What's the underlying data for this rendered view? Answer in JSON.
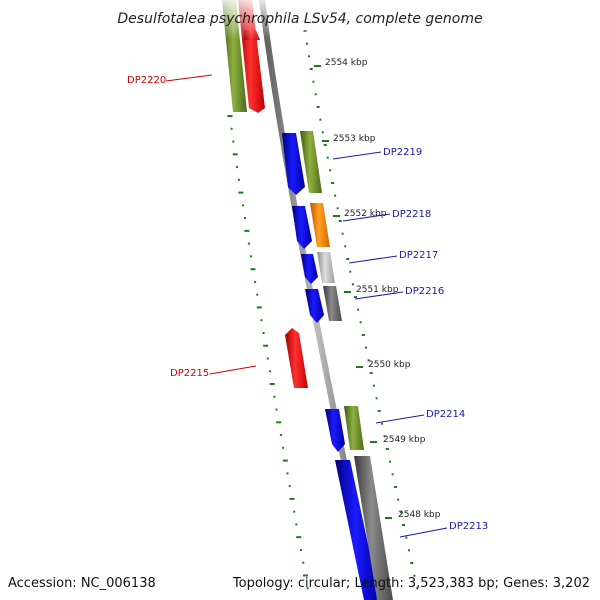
{
  "title": "Desulfotalea psychrophila LSv54, complete genome",
  "footer": {
    "accession": "Accession: NC_006138",
    "topology": "Topology: circular; Length: 3,523,383 bp; Genes: 3,202"
  },
  "colors": {
    "blue": "#1010ee",
    "olive": "#6b8e23",
    "red": "#ff1a1a",
    "orange": "#ff8c00",
    "silver": "#bdbdbd",
    "gray": "#6e6e6e",
    "backbone": "#8a8a8a",
    "gc_green": "#1f7a1f",
    "label_blue": "#1a1aaa",
    "label_red": "#cc0000"
  },
  "kbp_marks": [
    "2554 kbp",
    "2553 kbp",
    "2552 kbp",
    "2551 kbp",
    "2550 kbp",
    "2549 kbp",
    "2548 kbp"
  ],
  "genes": [
    {
      "label": "DP2220",
      "strand": "minus",
      "color_key": "red"
    },
    {
      "label": "DP2219",
      "strand": "plus",
      "color_key": "olive"
    },
    {
      "label": "DP2218",
      "strand": "plus",
      "color_key": "orange"
    },
    {
      "label": "DP2217",
      "strand": "plus",
      "color_key": "silver"
    },
    {
      "label": "DP2216",
      "strand": "plus",
      "color_key": "gray"
    },
    {
      "label": "DP2215",
      "strand": "minus",
      "color_key": "red"
    },
    {
      "label": "DP2214",
      "strand": "plus",
      "color_key": "olive"
    },
    {
      "label": "DP2213",
      "strand": "plus",
      "color_key": "gray"
    }
  ]
}
